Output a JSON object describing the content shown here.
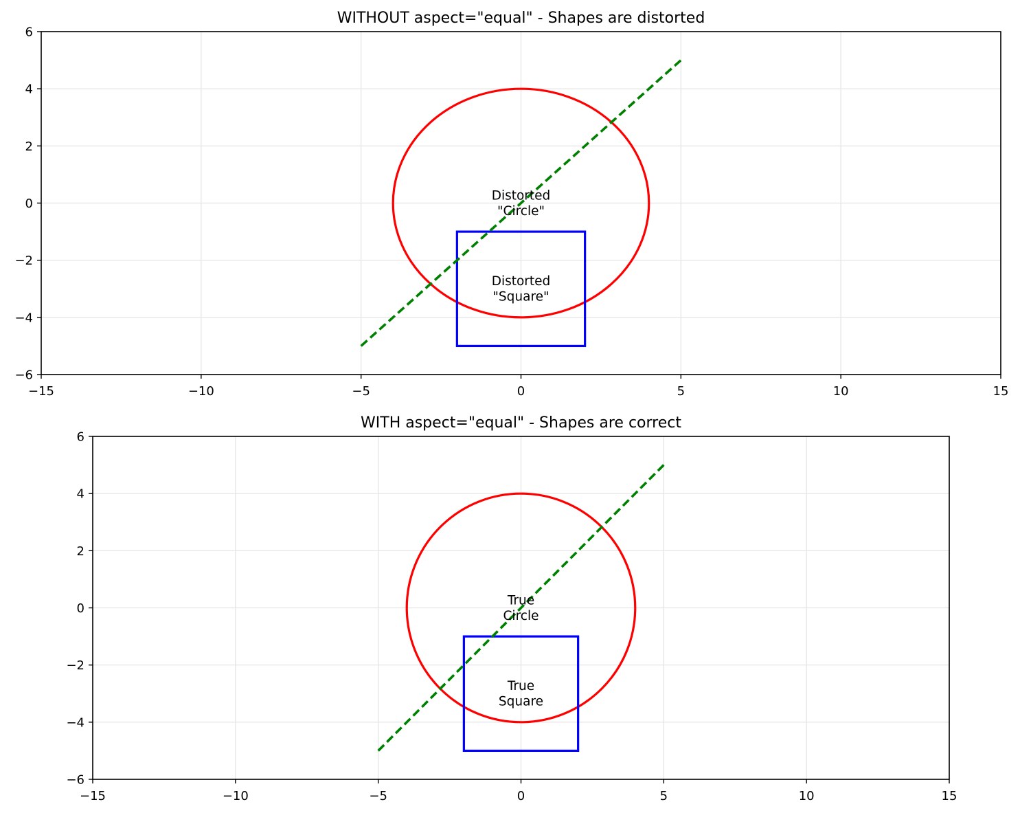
{
  "chart_data": [
    {
      "type": "line",
      "title": "WITHOUT aspect=\"equal\" - Shapes are distorted",
      "xlim": [
        -15,
        15
      ],
      "ylim": [
        -6,
        6
      ],
      "xticks": [
        -15,
        -10,
        -5,
        0,
        5,
        10,
        15
      ],
      "yticks": [
        -6,
        -4,
        -2,
        0,
        2,
        4,
        6
      ],
      "xtick_labels": [
        "−15",
        "−10",
        "−5",
        "0",
        "5",
        "10",
        "15"
      ],
      "ytick_labels": [
        "−6",
        "−4",
        "−2",
        "0",
        "2",
        "4",
        "6"
      ],
      "grid": true,
      "aspect_equal": false,
      "shapes": {
        "circle": {
          "center": [
            0,
            0
          ],
          "radius": 4,
          "color": "#ff0000"
        },
        "square": {
          "x": [
            -2,
            2
          ],
          "y": [
            -5,
            -1
          ],
          "color": "#0000ff"
        },
        "diagonal": {
          "x": [
            -5,
            5
          ],
          "y": [
            -5,
            5
          ],
          "color": "#008000",
          "style": "dashed"
        }
      },
      "annotations": [
        {
          "lines": [
            "Distorted",
            "\"Circle\""
          ],
          "x": 0,
          "y": 0
        },
        {
          "lines": [
            "Distorted",
            "\"Square\""
          ],
          "x": 0,
          "y": -3
        }
      ]
    },
    {
      "type": "line",
      "title": "WITH aspect=\"equal\" - Shapes are correct",
      "xlim": [
        -15,
        15
      ],
      "ylim": [
        -6,
        6
      ],
      "xticks": [
        -15,
        -10,
        -5,
        0,
        5,
        10,
        15
      ],
      "yticks": [
        -6,
        -4,
        -2,
        0,
        2,
        4,
        6
      ],
      "xtick_labels": [
        "−15",
        "−10",
        "−5",
        "0",
        "5",
        "10",
        "15"
      ],
      "ytick_labels": [
        "−6",
        "−4",
        "−2",
        "0",
        "2",
        "4",
        "6"
      ],
      "grid": true,
      "aspect_equal": true,
      "shapes": {
        "circle": {
          "center": [
            0,
            0
          ],
          "radius": 4,
          "color": "#ff0000"
        },
        "square": {
          "x": [
            -2,
            2
          ],
          "y": [
            -5,
            -1
          ],
          "color": "#0000ff"
        },
        "diagonal": {
          "x": [
            -5,
            5
          ],
          "y": [
            -5,
            5
          ],
          "color": "#008000",
          "style": "dashed"
        }
      },
      "annotations": [
        {
          "lines": [
            "True",
            "Circle"
          ],
          "x": 0,
          "y": 0
        },
        {
          "lines": [
            "True",
            "Square"
          ],
          "x": 0,
          "y": -3
        }
      ]
    }
  ]
}
